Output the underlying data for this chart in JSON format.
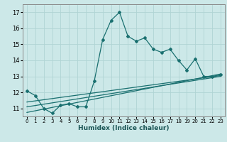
{
  "xlabel": "Humidex (Indice chaleur)",
  "bg_color": "#cce8e8",
  "grid_color": "#b0d4d4",
  "line_color": "#1a7070",
  "xlim": [
    -0.5,
    23.5
  ],
  "ylim": [
    10.5,
    17.5
  ],
  "xticks": [
    0,
    1,
    2,
    3,
    4,
    5,
    6,
    7,
    8,
    9,
    10,
    11,
    12,
    13,
    14,
    15,
    16,
    17,
    18,
    19,
    20,
    21,
    22,
    23
  ],
  "yticks": [
    11,
    12,
    13,
    14,
    15,
    16,
    17
  ],
  "series1_x": [
    0,
    1,
    2,
    3,
    4,
    5,
    6,
    7,
    8,
    9,
    10,
    11,
    12,
    13,
    14,
    15,
    16,
    17,
    18,
    19,
    20,
    21,
    22,
    23
  ],
  "series1_y": [
    12.1,
    11.8,
    11.0,
    10.7,
    11.2,
    11.3,
    11.1,
    11.1,
    12.7,
    15.3,
    16.5,
    17.0,
    15.5,
    15.2,
    15.4,
    14.7,
    14.5,
    14.7,
    14.0,
    13.4,
    14.1,
    13.0,
    13.0,
    13.1
  ],
  "series2_x": [
    0,
    23
  ],
  "series2_y": [
    11.4,
    13.05
  ],
  "series3_x": [
    0,
    23
  ],
  "series3_y": [
    11.1,
    13.0
  ],
  "series4_x": [
    0,
    23
  ],
  "series4_y": [
    10.75,
    13.15
  ]
}
